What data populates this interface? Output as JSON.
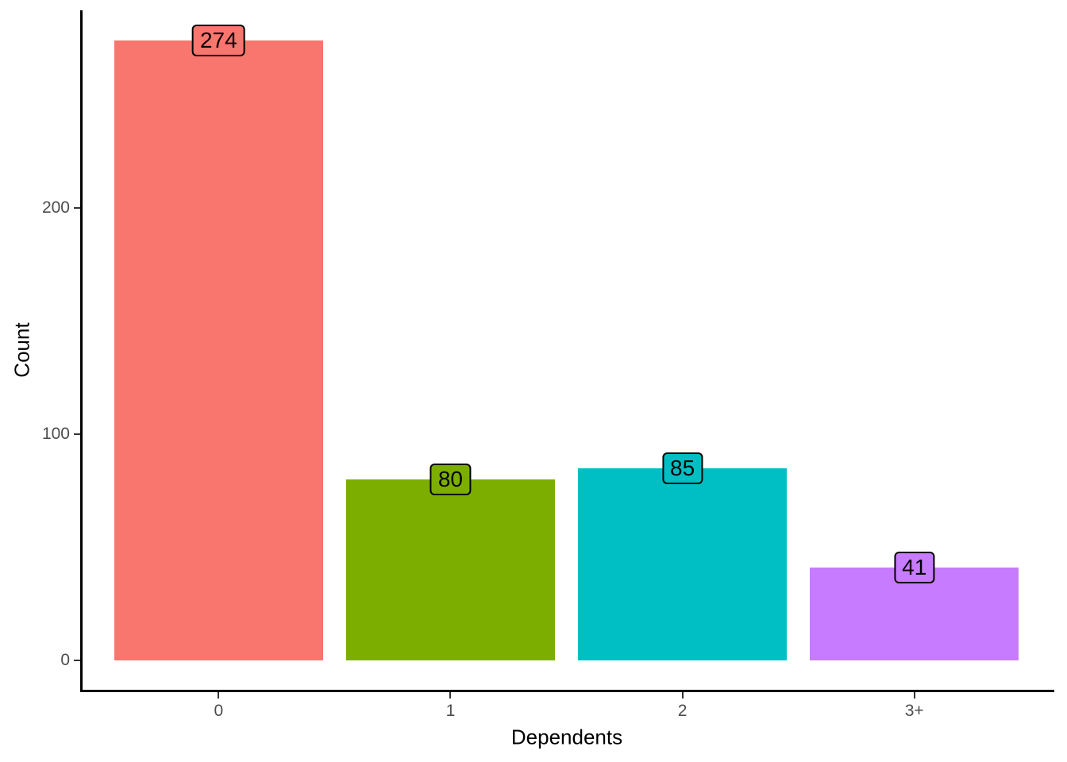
{
  "chart_data": {
    "type": "bar",
    "title": "",
    "xlabel": "Dependents",
    "ylabel": "Count",
    "categories": [
      "0",
      "1",
      "2",
      "3+"
    ],
    "values": [
      274,
      80,
      85,
      41
    ],
    "bar_colors": [
      "#F8766D",
      "#7CAE00",
      "#00BFC4",
      "#C77CFF"
    ],
    "value_labels": [
      "274",
      "80",
      "85",
      "41"
    ],
    "value_label_style": {
      "fill": "same-as-bar",
      "border_color": "#000000",
      "text_color": "#000000"
    },
    "y_ticks": [
      "0",
      "100",
      "200"
    ],
    "y_tick_values": [
      0,
      100,
      200
    ],
    "ylim": [
      0,
      288
    ],
    "grid": false,
    "legend_position": "none",
    "axis_color": "#000000",
    "tick_label_color": "#4d4d4d",
    "background_color": "#ffffff"
  }
}
